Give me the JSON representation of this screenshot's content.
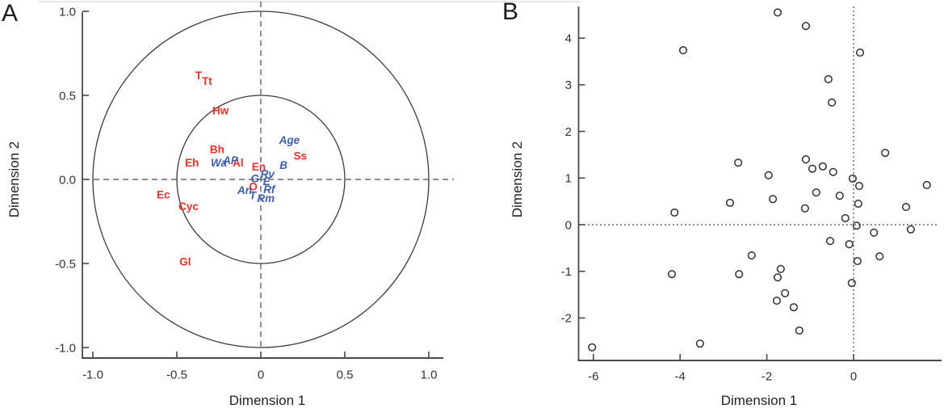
{
  "figure": {
    "panels": [
      {
        "letter": "A",
        "xlabel": "Dimension 1",
        "ylabel": "Dimension 2"
      },
      {
        "letter": "B",
        "xlabel": "Dimension 1",
        "ylabel": "Dimension 2"
      }
    ]
  },
  "colors": {
    "label_red": "#e8312b",
    "label_blue": "#3f5fad",
    "axis": "#4a4a4a",
    "tick_text": "#333333",
    "marker": "#2f2f2f",
    "circle_line": "#3a3a3a",
    "dash_line": "#4a4a4a",
    "top_rule": "#cccccc"
  },
  "chart_data": [
    {
      "type": "scatter",
      "panel": "A",
      "title": "",
      "xlabel": "Dimension 1",
      "ylabel": "Dimension 2",
      "xlim": [
        -1.08,
        1.1
      ],
      "ylim": [
        -1.06,
        1.0
      ],
      "xtick_values": [
        -1.0,
        -0.5,
        0,
        0.5,
        1.0
      ],
      "xtick_labels": [
        "-1.0",
        "-0.5",
        "0",
        "0.5",
        "1.0"
      ],
      "ytick_values": [
        1.0,
        0.5,
        0,
        -0.5,
        -1.0
      ],
      "ytick_labels": [
        "1.0",
        "0.5",
        "0.0",
        "-0.5",
        "-1.0"
      ],
      "grid": false,
      "reference_circle_radii": [
        0.5,
        1.0
      ],
      "crosshair": {
        "v_at_x": 0,
        "h_at_y": 0,
        "style": "dashed"
      },
      "series": [
        {
          "name": "red-variable-labels",
          "color_key": "label_red",
          "labels": [
            {
              "text": "T",
              "x": -0.37,
              "y": 0.62
            },
            {
              "text": "Tt",
              "x": -0.32,
              "y": 0.585
            },
            {
              "text": "Hw",
              "x": -0.24,
              "y": 0.41
            },
            {
              "text": "Bh",
              "x": -0.26,
              "y": 0.18
            },
            {
              "text": "Eh",
              "x": -0.41,
              "y": 0.1
            },
            {
              "text": "Al",
              "x": -0.135,
              "y": 0.1
            },
            {
              "text": "En",
              "x": -0.012,
              "y": 0.075
            },
            {
              "text": "Ss",
              "x": 0.235,
              "y": 0.14
            },
            {
              "text": "O",
              "x": -0.045,
              "y": -0.042
            },
            {
              "text": "Ec",
              "x": -0.58,
              "y": -0.09
            },
            {
              "text": "Cyc",
              "x": -0.43,
              "y": -0.16
            },
            {
              "text": "Gl",
              "x": -0.45,
              "y": -0.49
            }
          ]
        },
        {
          "name": "blue-variable-labels",
          "color_key": "label_blue",
          "labels": [
            {
              "text": "Age",
              "x": 0.17,
              "y": 0.235
            },
            {
              "text": "AP",
              "x": -0.18,
              "y": 0.115
            },
            {
              "text": "Wa",
              "x": -0.25,
              "y": 0.1
            },
            {
              "text": "B",
              "x": 0.135,
              "y": 0.085
            },
            {
              "text": "Rv",
              "x": 0.04,
              "y": 0.032
            },
            {
              "text": "G",
              "x": -0.035,
              "y": 0.005
            },
            {
              "text": "E",
              "x": 0.034,
              "y": -0.012
            },
            {
              "text": "An",
              "x": -0.096,
              "y": -0.063
            },
            {
              "text": "Rf",
              "x": 0.05,
              "y": -0.058
            },
            {
              "text": "T",
              "x": -0.048,
              "y": -0.095
            },
            {
              "text": "Rm",
              "x": 0.03,
              "y": -0.112
            }
          ]
        }
      ]
    },
    {
      "type": "scatter",
      "panel": "B",
      "title": "",
      "xlabel": "Dimension 1",
      "ylabel": "Dimension 2",
      "xlim": [
        -6.35,
        2.05
      ],
      "ylim": [
        -2.9,
        4.65
      ],
      "xtick_values": [
        -6,
        -4,
        -2,
        0
      ],
      "xtick_labels": [
        "-6",
        "-4",
        "-2",
        "0"
      ],
      "ytick_values": [
        4,
        3,
        2,
        1,
        0,
        -1,
        -2
      ],
      "ytick_labels": [
        "4",
        "3",
        "2",
        "1",
        "0",
        "-1",
        "-2"
      ],
      "grid": false,
      "crosshair": {
        "v_at_x": 0,
        "h_at_y": 0,
        "style": "dotted"
      },
      "marker": "open-circle",
      "points": [
        [
          -1.75,
          4.55
        ],
        [
          -1.1,
          4.26
        ],
        [
          0.15,
          3.69
        ],
        [
          -3.93,
          3.74
        ],
        [
          -0.58,
          3.12
        ],
        [
          -0.5,
          2.62
        ],
        [
          -2.66,
          1.33
        ],
        [
          -4.13,
          0.26
        ],
        [
          -2.85,
          0.47
        ],
        [
          -1.1,
          1.4
        ],
        [
          -0.95,
          1.2
        ],
        [
          -0.71,
          1.25
        ],
        [
          -0.47,
          1.13
        ],
        [
          -1.96,
          1.06
        ],
        [
          -0.86,
          0.69
        ],
        [
          -0.32,
          0.62
        ],
        [
          -1.86,
          0.55
        ],
        [
          -1.12,
          0.35
        ],
        [
          -0.19,
          0.14
        ],
        [
          0.73,
          1.54
        ],
        [
          -0.02,
          0.99
        ],
        [
          0.13,
          0.83
        ],
        [
          0.11,
          0.45
        ],
        [
          1.69,
          0.85
        ],
        [
          1.21,
          0.38
        ],
        [
          0.07,
          -0.02
        ],
        [
          0.47,
          -0.17
        ],
        [
          1.32,
          -0.1
        ],
        [
          -0.54,
          -0.35
        ],
        [
          -0.1,
          -0.42
        ],
        [
          -2.35,
          -0.66
        ],
        [
          -4.19,
          -1.06
        ],
        [
          -2.64,
          -1.06
        ],
        [
          -6.03,
          -2.63
        ],
        [
          -3.54,
          -2.55
        ],
        [
          0.09,
          -0.78
        ],
        [
          0.6,
          -0.68
        ],
        [
          -1.68,
          -0.95
        ],
        [
          -1.75,
          -1.13
        ],
        [
          -1.58,
          -1.47
        ],
        [
          -1.77,
          -1.63
        ],
        [
          -1.38,
          -1.77
        ],
        [
          -1.25,
          -2.27
        ],
        [
          -0.04,
          -1.25
        ]
      ]
    }
  ]
}
